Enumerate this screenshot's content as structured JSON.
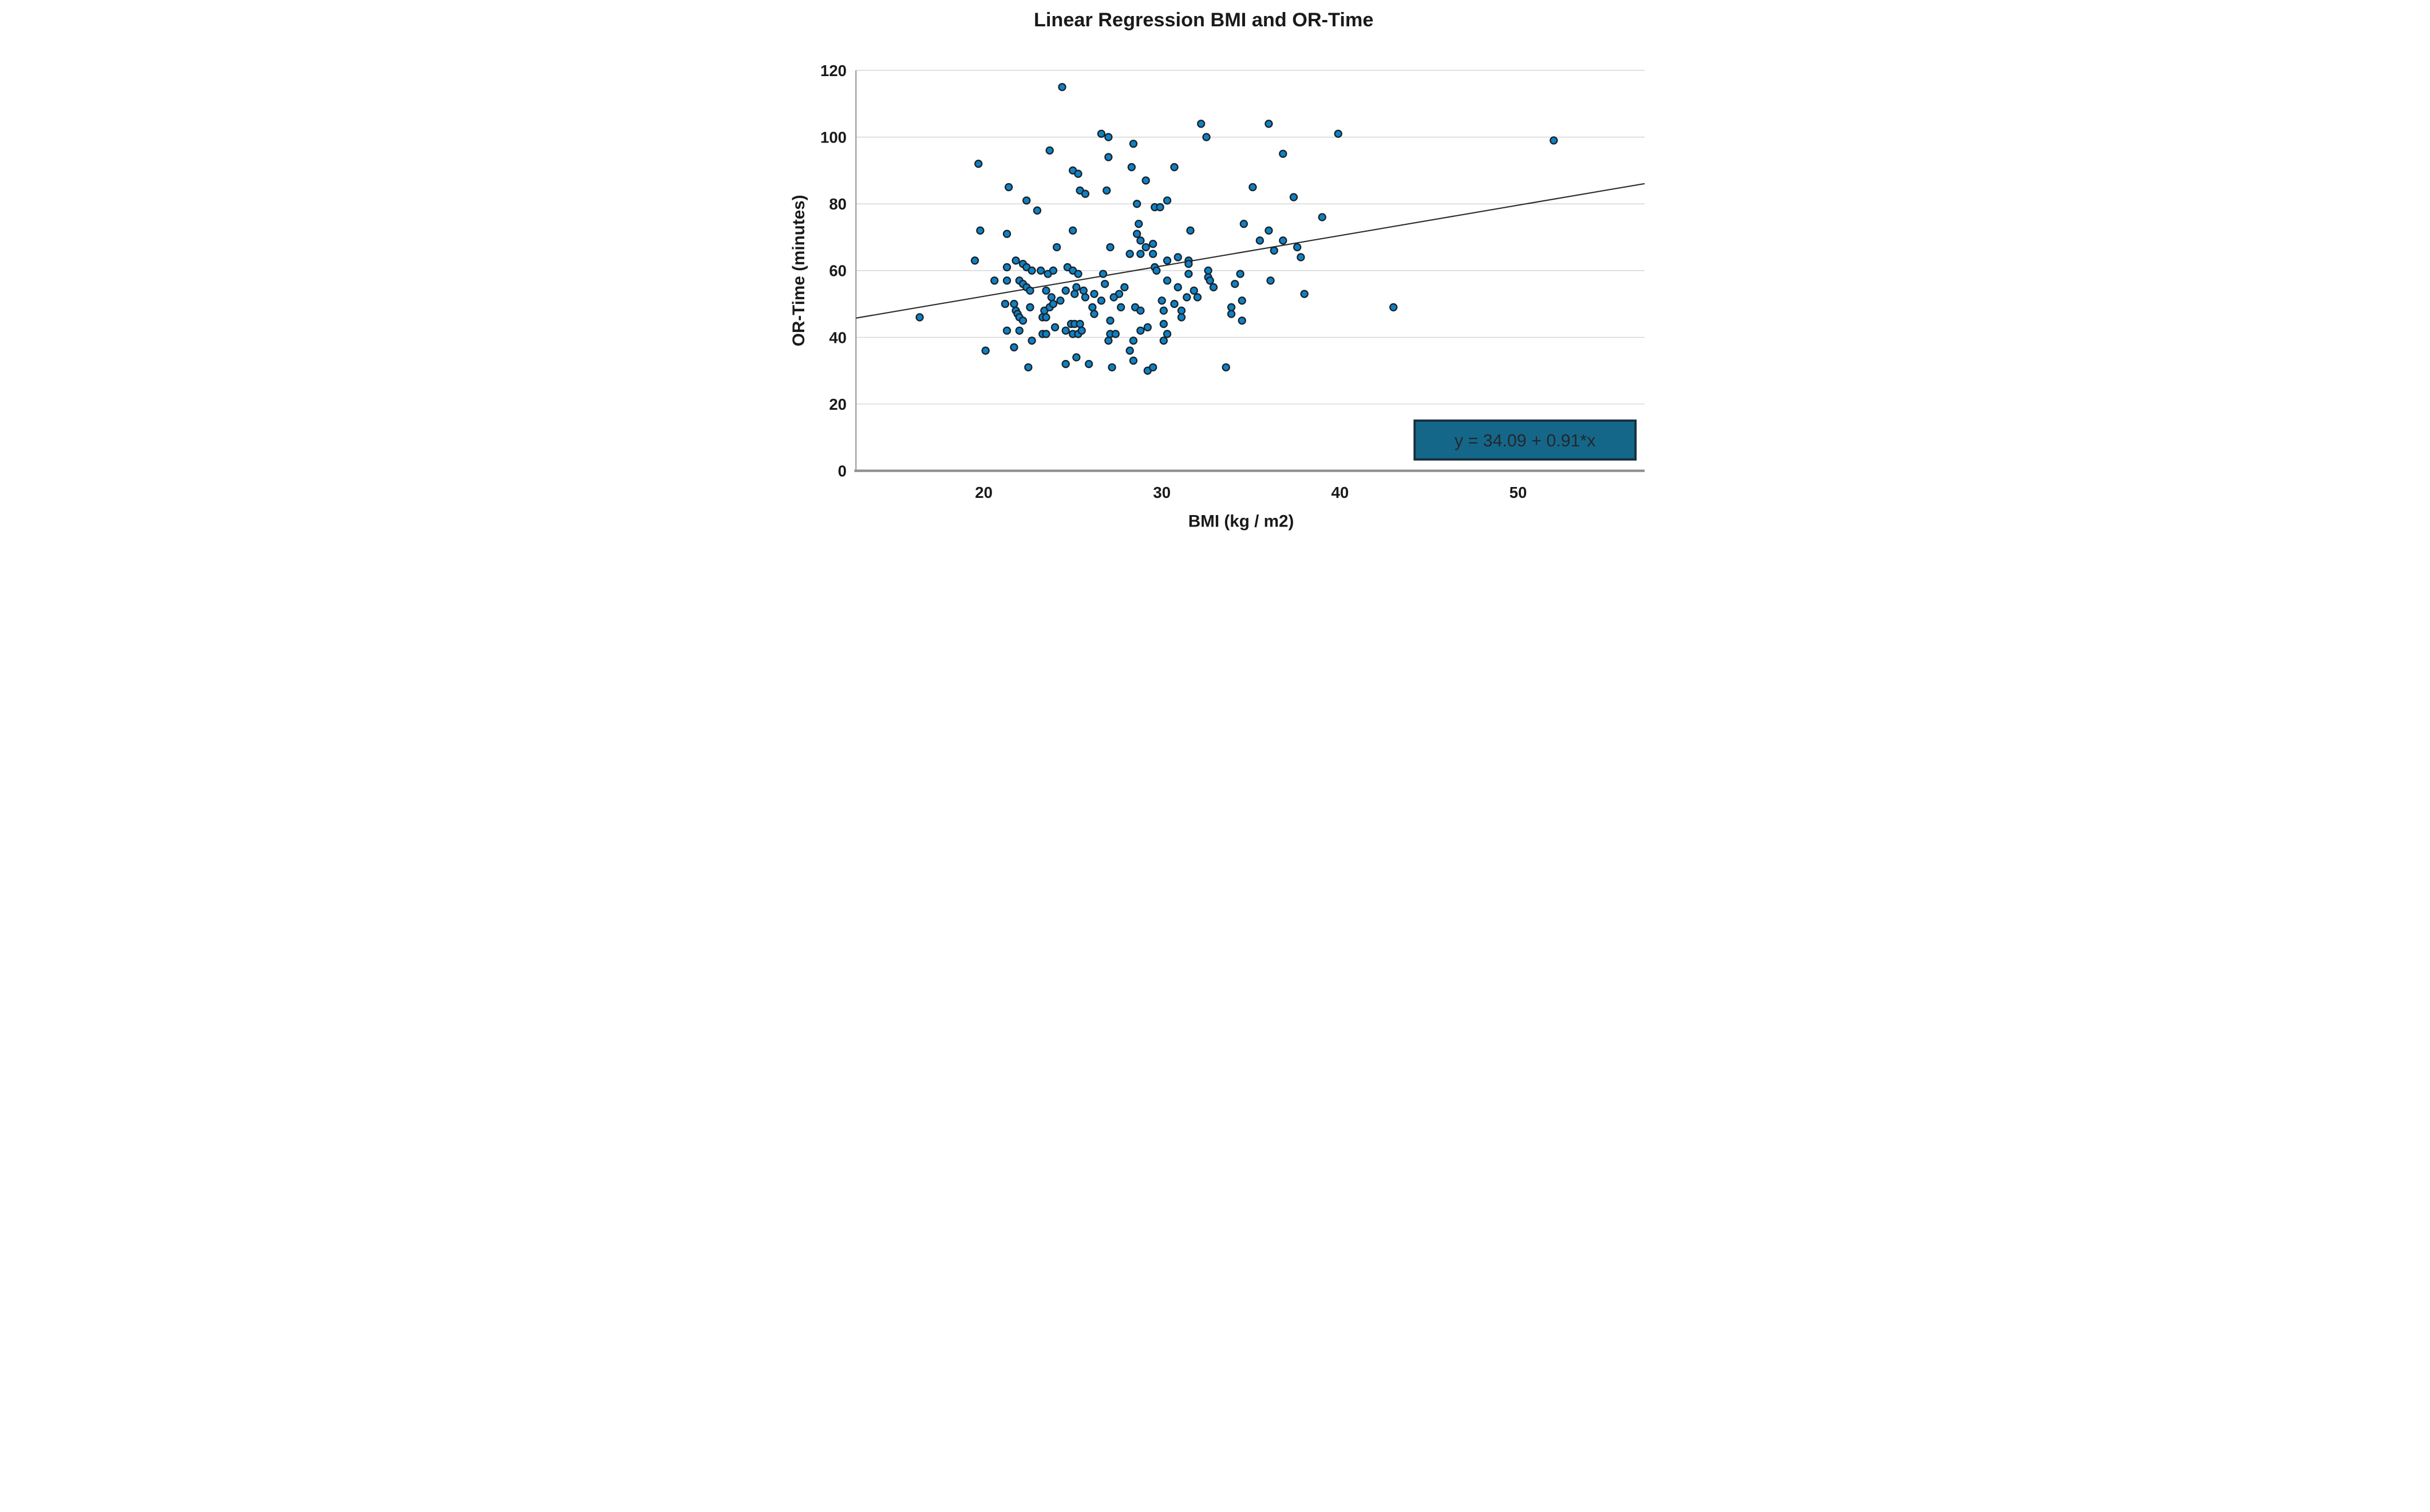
{
  "title": "Linear Regression BMI and OR-Time",
  "chart_data": {
    "type": "scatter",
    "title": "Linear Regression BMI and OR-Time",
    "xlabel": "BMI (kg / m2)",
    "ylabel": "OR-Time (minutes)",
    "xlim": [
      12.8,
      57.1
    ],
    "ylim": [
      0,
      120
    ],
    "x_ticks": [
      20,
      30,
      40,
      50
    ],
    "y_ticks": [
      0,
      20,
      40,
      60,
      80,
      100,
      120
    ],
    "grid": true,
    "legend_position": "none",
    "regression": {
      "intercept": 34.09,
      "slope": 0.91,
      "label": "y = 34.09 + 0.91*x"
    },
    "points": [
      [
        19.7,
        92
      ],
      [
        21.4,
        85
      ],
      [
        19.8,
        72
      ],
      [
        21.3,
        71
      ],
      [
        19.5,
        63
      ],
      [
        24.4,
        115
      ],
      [
        26.6,
        101
      ],
      [
        27.0,
        100
      ],
      [
        28.4,
        98
      ],
      [
        23.7,
        96
      ],
      [
        27.0,
        94
      ],
      [
        28.3,
        91
      ],
      [
        25.0,
        90
      ],
      [
        25.3,
        89
      ],
      [
        25.4,
        84
      ],
      [
        25.7,
        83
      ],
      [
        26.9,
        84
      ],
      [
        22.4,
        81
      ],
      [
        23.0,
        78
      ],
      [
        32.2,
        104
      ],
      [
        32.5,
        100
      ],
      [
        36.0,
        104
      ],
      [
        30.7,
        91
      ],
      [
        29.1,
        87
      ],
      [
        35.1,
        85
      ],
      [
        30.3,
        81
      ],
      [
        29.6,
        79
      ],
      [
        29.9,
        79
      ],
      [
        39.9,
        101
      ],
      [
        36.8,
        95
      ],
      [
        37.4,
        82
      ],
      [
        39.0,
        76
      ],
      [
        52.0,
        99
      ],
      [
        25.0,
        72
      ],
      [
        28.7,
        74
      ],
      [
        28.6,
        71
      ],
      [
        28.8,
        69
      ],
      [
        24.1,
        67
      ],
      [
        27.1,
        67
      ],
      [
        28.2,
        65
      ],
      [
        29.1,
        67
      ],
      [
        21.8,
        63
      ],
      [
        21.3,
        61
      ],
      [
        22.2,
        62
      ],
      [
        22.4,
        61
      ],
      [
        22.7,
        60
      ],
      [
        23.2,
        60
      ],
      [
        23.6,
        59
      ],
      [
        23.9,
        60
      ],
      [
        26.7,
        59
      ],
      [
        26.8,
        56
      ],
      [
        24.7,
        61
      ],
      [
        25.0,
        60
      ],
      [
        25.3,
        59
      ],
      [
        34.6,
        74
      ],
      [
        31.6,
        72
      ],
      [
        36.0,
        72
      ],
      [
        28.8,
        65
      ],
      [
        29.5,
        68
      ],
      [
        29.5,
        65
      ],
      [
        30.3,
        63
      ],
      [
        30.9,
        64
      ],
      [
        31.5,
        63
      ],
      [
        31.5,
        62
      ],
      [
        29.6,
        61
      ],
      [
        29.7,
        60
      ],
      [
        35.5,
        69
      ],
      [
        36.3,
        66
      ],
      [
        31.5,
        59
      ],
      [
        32.6,
        60
      ],
      [
        32.6,
        58
      ],
      [
        32.7,
        57
      ],
      [
        32.9,
        55
      ],
      [
        30.3,
        57
      ],
      [
        30.9,
        55
      ],
      [
        31.8,
        54
      ],
      [
        31.4,
        52
      ],
      [
        32.0,
        52
      ],
      [
        34.4,
        59
      ],
      [
        34.1,
        56
      ],
      [
        36.1,
        57
      ],
      [
        28.5,
        49
      ],
      [
        28.8,
        48
      ],
      [
        30.0,
        51
      ],
      [
        30.1,
        48
      ],
      [
        30.1,
        44
      ],
      [
        30.3,
        41
      ],
      [
        30.1,
        39
      ],
      [
        29.2,
        43
      ],
      [
        30.7,
        50
      ],
      [
        31.1,
        48
      ],
      [
        31.1,
        46
      ],
      [
        33.9,
        49
      ],
      [
        33.9,
        47
      ],
      [
        34.5,
        51
      ],
      [
        34.5,
        45
      ],
      [
        28.8,
        42
      ],
      [
        36.8,
        69
      ],
      [
        37.6,
        67
      ],
      [
        37.8,
        64
      ],
      [
        38.0,
        53
      ],
      [
        43.0,
        49
      ],
      [
        24.6,
        54
      ],
      [
        25.2,
        55
      ],
      [
        25.1,
        53
      ],
      [
        25.6,
        54
      ],
      [
        25.7,
        52
      ],
      [
        27.9,
        55
      ],
      [
        27.6,
        53
      ],
      [
        26.2,
        53
      ],
      [
        26.6,
        51
      ],
      [
        26.1,
        49
      ],
      [
        26.2,
        47
      ],
      [
        27.3,
        52
      ],
      [
        27.7,
        49
      ],
      [
        27.1,
        45
      ],
      [
        27.1,
        41
      ],
      [
        27.4,
        41
      ],
      [
        27.0,
        39
      ],
      [
        28.4,
        39
      ],
      [
        24.9,
        44
      ],
      [
        25.1,
        44
      ],
      [
        25.4,
        44
      ],
      [
        24.6,
        42
      ],
      [
        25.0,
        41
      ],
      [
        25.3,
        41
      ],
      [
        25.5,
        42
      ],
      [
        28.2,
        36
      ],
      [
        24.6,
        32
      ],
      [
        25.2,
        34
      ],
      [
        25.9,
        32
      ],
      [
        27.2,
        31
      ],
      [
        28.4,
        33
      ],
      [
        29.2,
        30
      ],
      [
        29.5,
        31
      ],
      [
        33.6,
        31
      ],
      [
        16.4,
        46
      ],
      [
        20.1,
        36
      ],
      [
        22.5,
        31
      ],
      [
        21.7,
        37
      ],
      [
        20.6,
        57
      ],
      [
        21.3,
        57
      ],
      [
        22.0,
        57
      ],
      [
        22.2,
        56
      ],
      [
        22.4,
        55
      ],
      [
        22.6,
        54
      ],
      [
        23.5,
        54
      ],
      [
        21.2,
        50
      ],
      [
        21.7,
        50
      ],
      [
        21.8,
        48
      ],
      [
        21.9,
        47
      ],
      [
        22.0,
        46
      ],
      [
        22.2,
        45
      ],
      [
        22.6,
        49
      ],
      [
        23.4,
        48
      ],
      [
        23.7,
        49
      ],
      [
        23.9,
        50
      ],
      [
        23.8,
        52
      ],
      [
        24.3,
        51
      ],
      [
        23.3,
        46
      ],
      [
        23.5,
        46
      ],
      [
        24.0,
        43
      ],
      [
        21.3,
        42
      ],
      [
        22.0,
        42
      ],
      [
        22.7,
        39
      ],
      [
        23.3,
        41
      ],
      [
        23.5,
        41
      ],
      [
        28.6,
        80
      ]
    ]
  },
  "colors": {
    "point_fill": "#1180c1",
    "point_stroke": "#16242e",
    "regression_line": "#2b2b2b",
    "gridline": "#c9c9c9",
    "axis_left": "#a5a5a5",
    "axis_bottom": "#8f8f8f",
    "equation_box_fill": "#15678a",
    "equation_box_border": "#182f3d",
    "text": "#1a1a1a"
  }
}
